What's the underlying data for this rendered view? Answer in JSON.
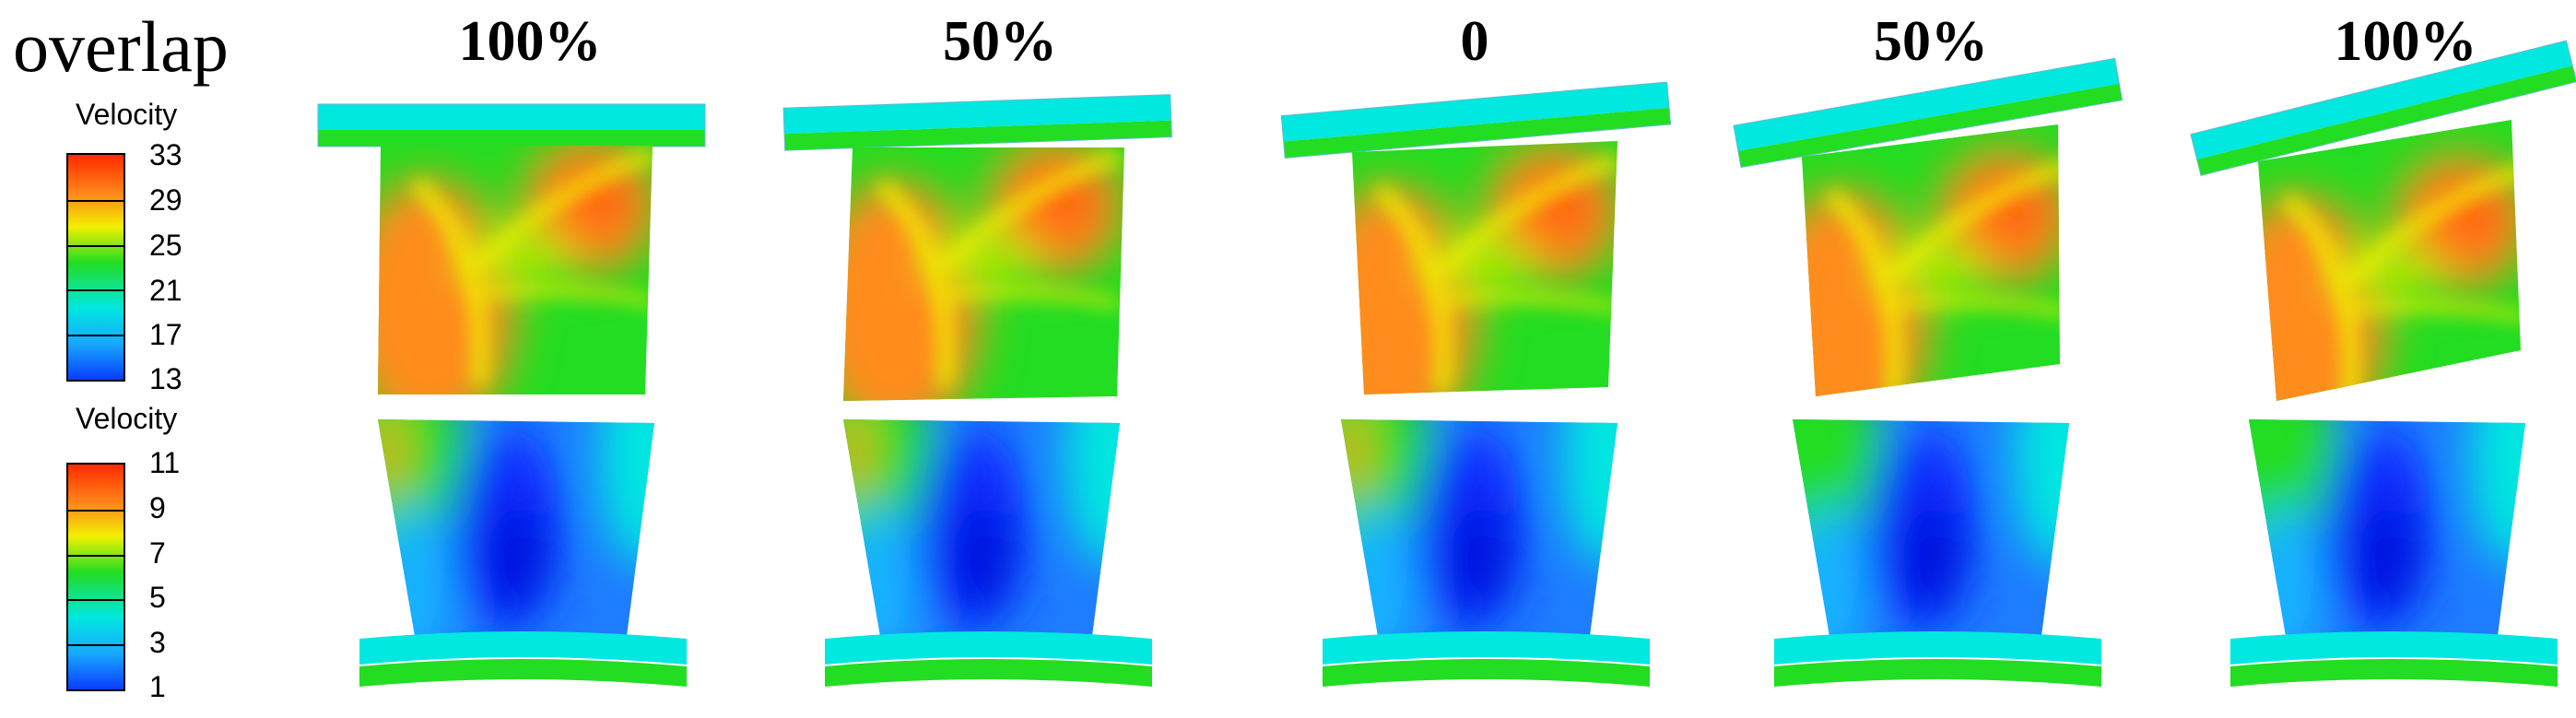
{
  "row_label": "overlap",
  "columns": [
    "100%",
    "50%",
    "0",
    "50%",
    "100%"
  ],
  "legend_top": {
    "title": "Velocity",
    "ticks": [
      "33",
      "29",
      "25",
      "21",
      "17",
      "13"
    ]
  },
  "legend_bottom": {
    "title": "Velocity",
    "ticks": [
      "11",
      "9",
      "7",
      "5",
      "3",
      "1"
    ]
  },
  "colors": {
    "red": "#ff2a00",
    "orange": "#ff8c1a",
    "yellow": "#f2f000",
    "green": "#22dd22",
    "cyan": "#00e8e0",
    "blue": "#0a3cff"
  }
}
